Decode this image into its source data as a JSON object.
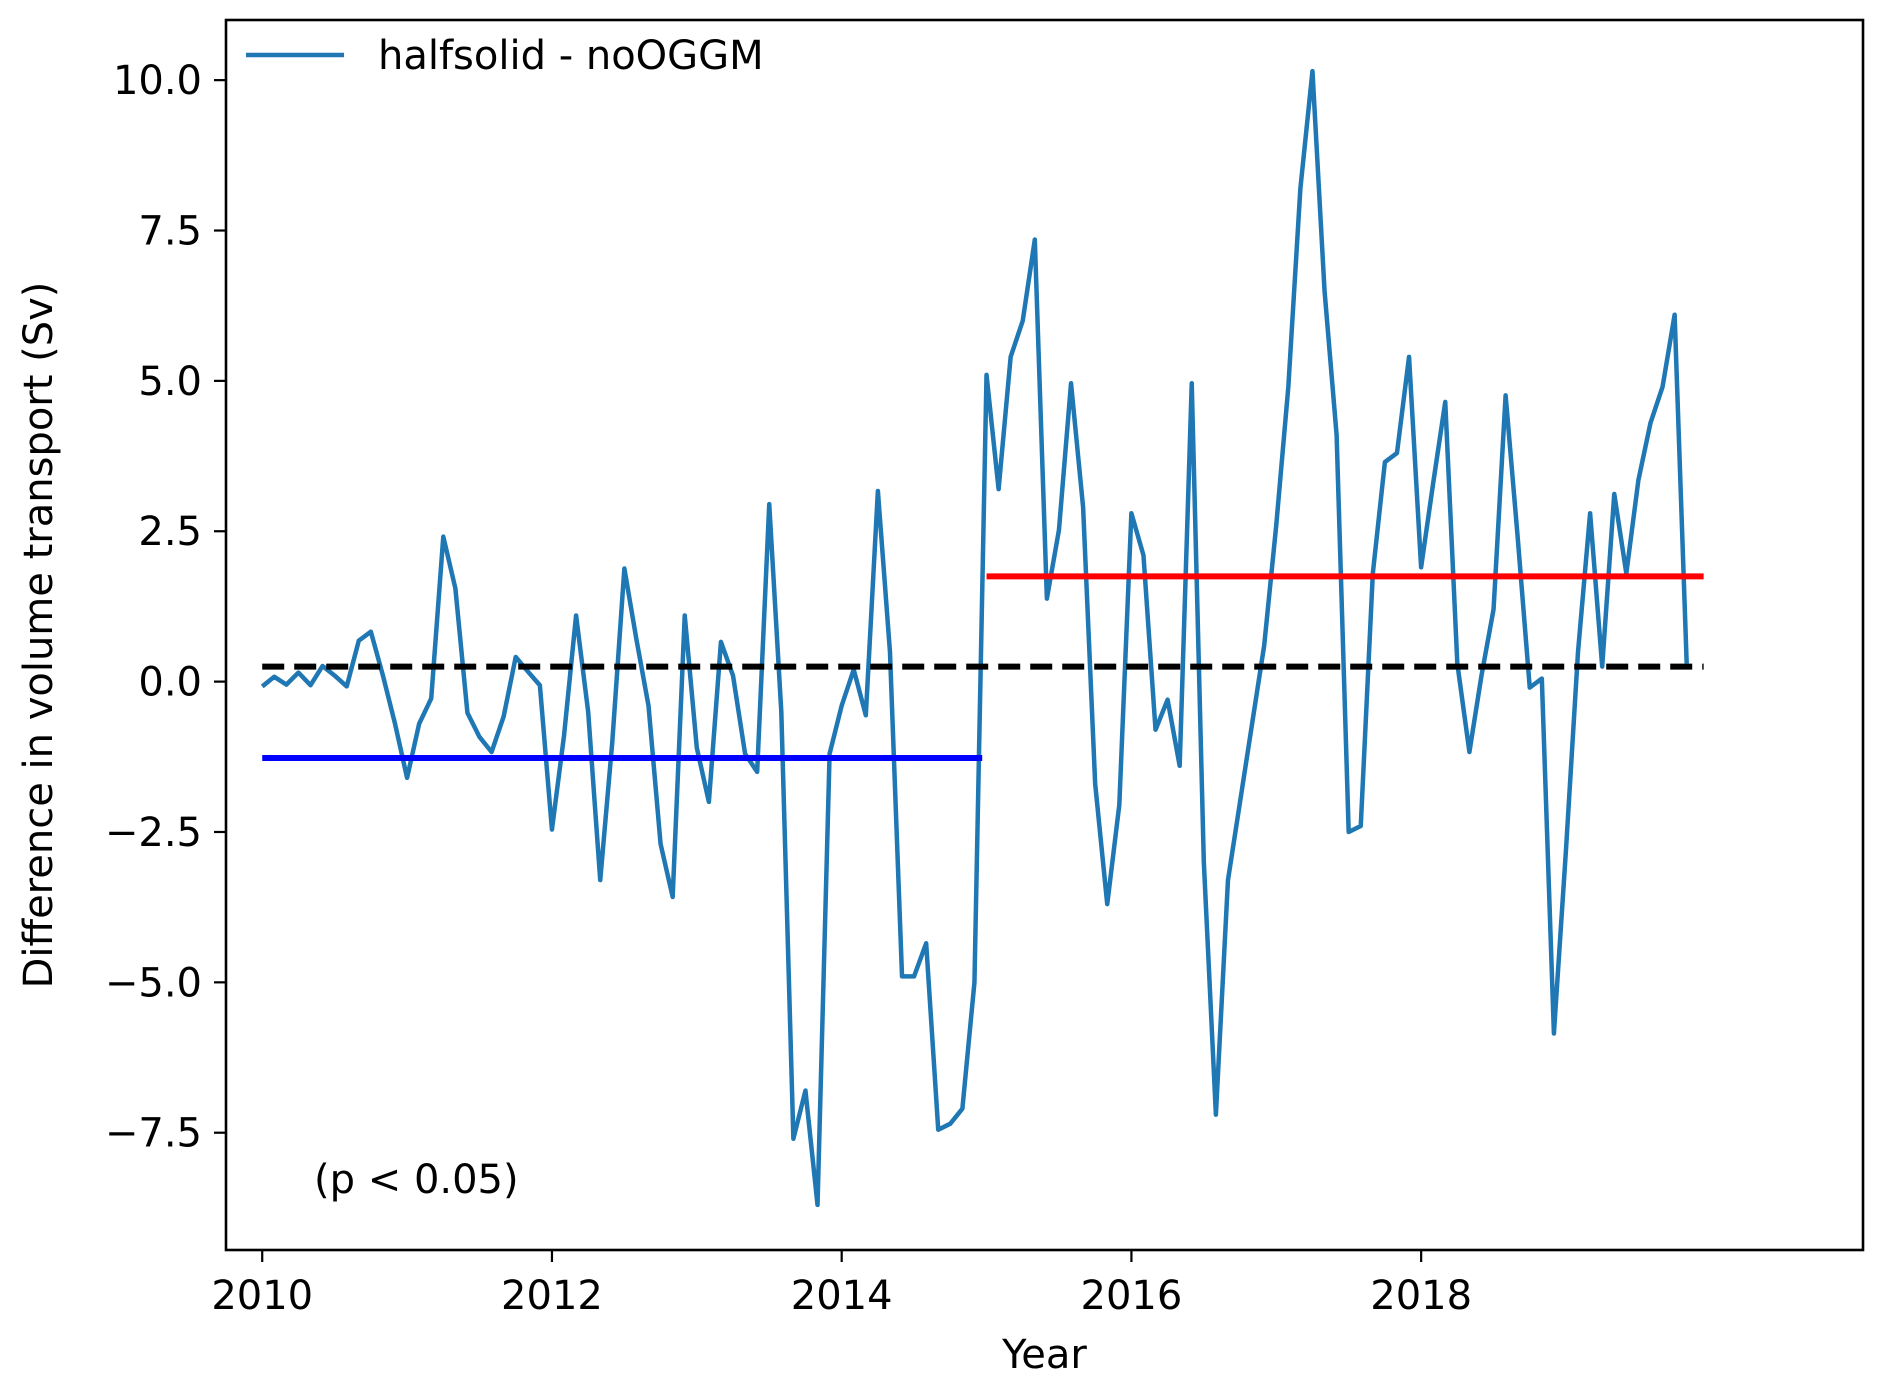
{
  "chart_data": {
    "type": "line",
    "xlabel": "Year",
    "ylabel": "Difference in volume transport (Sv)",
    "xlim": [
      2009.75,
      2021.05
    ],
    "ylim": [
      -9.45,
      11.0
    ],
    "xticks": [
      2010,
      2012,
      2014,
      2016,
      2018
    ],
    "xtick_labels": [
      "2010",
      "2012",
      "2014",
      "2016",
      "2018"
    ],
    "yticks": [
      -7.5,
      -5.0,
      -2.5,
      0.0,
      2.5,
      5.0,
      7.5,
      10.0
    ],
    "ytick_labels": [
      "−7.5",
      "−5.0",
      "−2.5",
      "0.0",
      "2.5",
      "5.0",
      "7.5",
      "10.0"
    ],
    "legend": {
      "label": "halfsolid - noOGGM",
      "location": "top-left"
    },
    "annotation": "(p < 0.05)",
    "series": [
      {
        "name": "halfsolid - noOGGM",
        "color": "#1f77b4",
        "x_start": 2010.0,
        "x_step": 0.08333,
        "values": [
          -0.08,
          0.08,
          -0.05,
          0.15,
          -0.06,
          0.26,
          0.1,
          -0.08,
          0.68,
          0.83,
          0.1,
          -0.7,
          -1.6,
          -0.7,
          -0.28,
          2.41,
          1.55,
          -0.52,
          -0.92,
          -1.17,
          -0.58,
          0.41,
          0.17,
          -0.06,
          -2.46,
          -0.9,
          1.1,
          -0.5,
          -3.3,
          -1.0,
          1.88,
          0.7,
          -0.4,
          -2.7,
          -3.58,
          1.1,
          -1.1,
          -2.0,
          0.66,
          0.1,
          -1.2,
          -1.5,
          2.95,
          -0.5,
          -7.6,
          -6.8,
          -8.7,
          -1.2,
          -0.4,
          0.2,
          -0.56,
          3.17,
          0.5,
          -4.9,
          -4.9,
          -4.35,
          -7.45,
          -7.35,
          -7.1,
          -5.0,
          5.1,
          3.2,
          5.4,
          6.0,
          7.35,
          1.38,
          2.52,
          4.96,
          2.9,
          -1.7,
          -3.7,
          -2.05,
          2.8,
          2.1,
          -0.8,
          -0.3,
          -1.4,
          4.96,
          -3.0,
          -7.2,
          -3.3,
          -2.0,
          -0.7,
          0.6,
          2.6,
          4.9,
          8.2,
          10.15,
          6.5,
          4.1,
          -2.5,
          -2.4,
          1.8,
          3.65,
          3.8,
          5.4,
          1.9,
          3.3,
          4.65,
          0.3,
          -1.17,
          0.1,
          1.2,
          4.76,
          2.4,
          -0.1,
          0.05,
          -5.85,
          -2.8,
          0.5,
          2.8,
          0.25,
          3.12,
          1.8,
          3.35,
          4.3,
          4.9,
          6.1,
          0.3
        ]
      }
    ],
    "reference_lines": [
      {
        "name": "overall mean",
        "color": "#000000",
        "style": "dashed",
        "x": [
          2010.0,
          2019.95
        ],
        "y": 0.25
      },
      {
        "name": "2010-2014 mean",
        "color": "#0000ff",
        "style": "solid",
        "x": [
          2010.0,
          2014.97
        ],
        "y": -1.27
      },
      {
        "name": "2015-2019 mean",
        "color": "#ff0000",
        "style": "solid",
        "x": [
          2015.0,
          2019.95
        ],
        "y": 1.75
      }
    ]
  }
}
